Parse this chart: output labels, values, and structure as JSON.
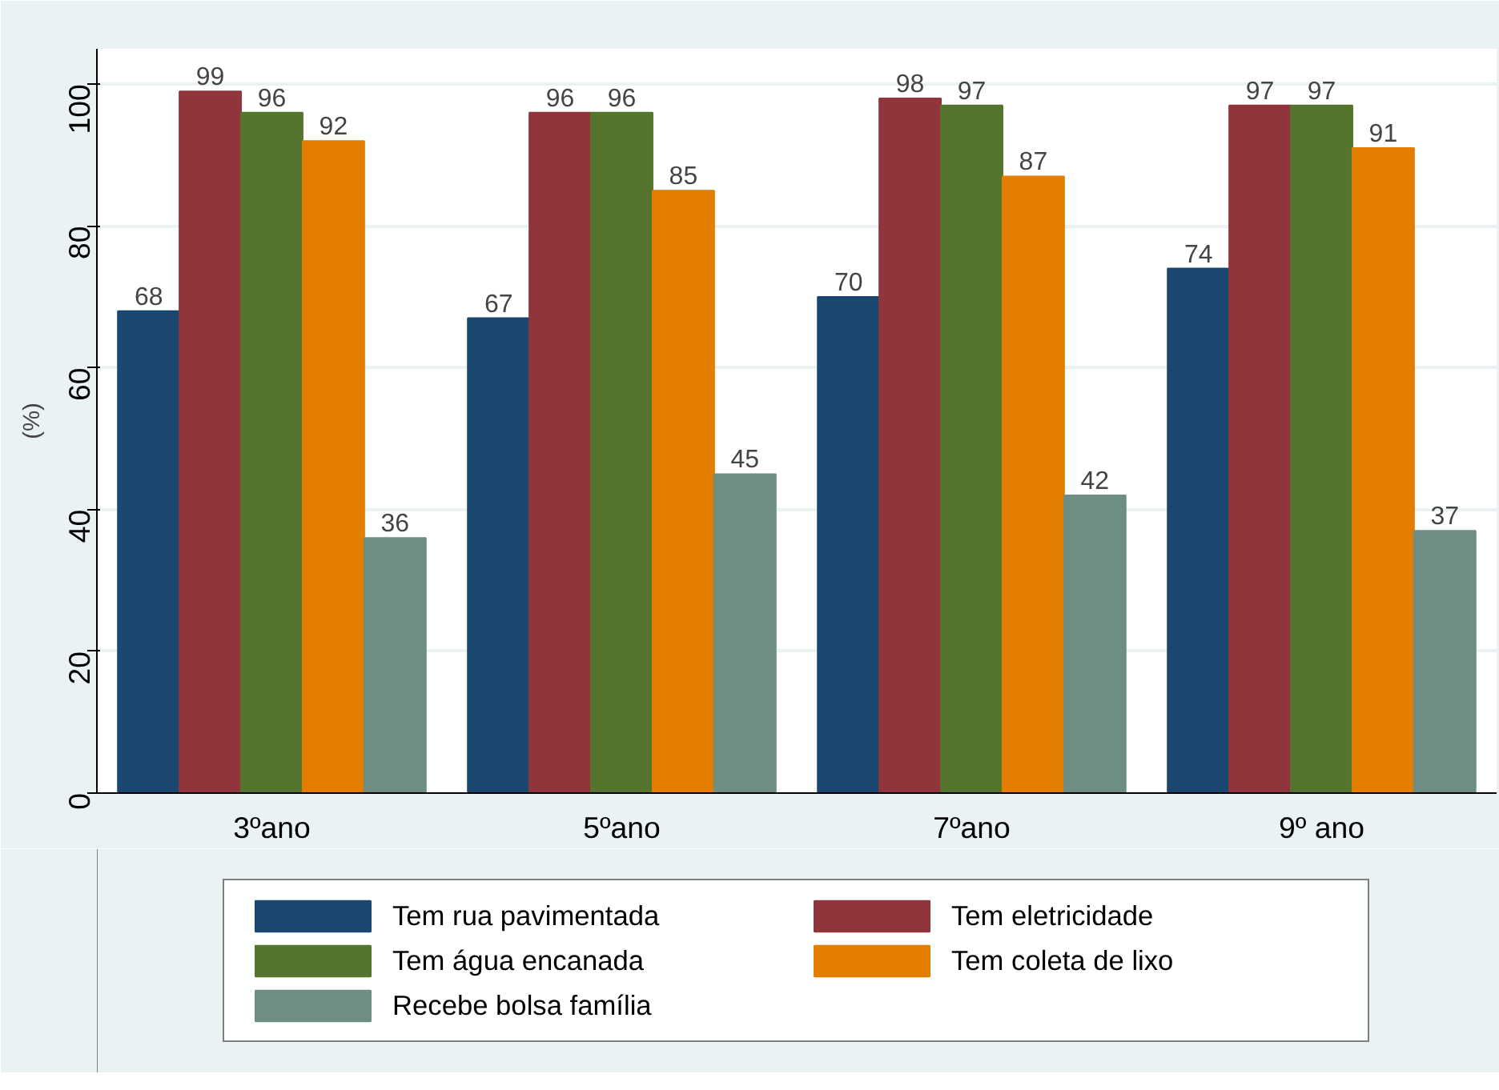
{
  "chart_data": {
    "type": "bar",
    "ylabel": "(%)",
    "categories": [
      "3ºano",
      "5ºano",
      "7ºano",
      "9º ano"
    ],
    "series": [
      {
        "name": "Tem rua pavimentada",
        "color": "#1a476f",
        "values": [
          68,
          67,
          70,
          74
        ]
      },
      {
        "name": "Tem eletricidade",
        "color": "#90353b",
        "values": [
          99,
          96,
          98,
          97
        ]
      },
      {
        "name": "Tem água encanada",
        "color": "#55752f",
        "values": [
          96,
          96,
          97,
          97
        ]
      },
      {
        "name": "Tem coleta de lixo",
        "color": "#e37e00",
        "values": [
          92,
          85,
          87,
          91
        ]
      },
      {
        "name": "Recebe bolsa família",
        "color": "#6e8e84",
        "values": [
          36,
          45,
          42,
          37
        ]
      }
    ],
    "ylim": [
      0,
      105
    ],
    "yticks": [
      0,
      20,
      40,
      60,
      80,
      100
    ],
    "grid": "y",
    "data_labels": true,
    "legend": "bottom"
  }
}
